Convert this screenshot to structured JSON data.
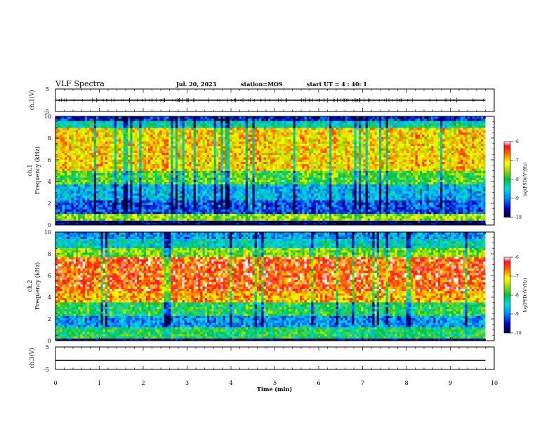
{
  "header": {
    "title": "VLF Spectra",
    "date": "Jul. 20, 2023",
    "station": "station=MOS",
    "start": "start UT = 4 : 40: 1"
  },
  "chart_data": [
    {
      "type": "line",
      "panel": "ch1-waveform",
      "ylabel": "ch.1(V)",
      "ylim": [
        -5,
        5
      ],
      "yticks": [
        "5",
        "-5"
      ],
      "xlim": [
        0,
        10
      ],
      "trace_level": 0
    },
    {
      "type": "heatmap",
      "panel": "ch1-spectrogram",
      "ylabel_top": "ch.1",
      "ylabel": "Frequency (kHz)",
      "ylim": [
        0,
        10
      ],
      "yticks": [
        "0",
        "2",
        "4",
        "6",
        "8",
        "10"
      ],
      "xlim": [
        0,
        10
      ],
      "data_end": 9.8,
      "colorbar": {
        "label": "log(PSD)(V²/Hz)",
        "range": [
          -10,
          -6
        ],
        "ticks": [
          "-6",
          "-7",
          "-8",
          "-9",
          "-10"
        ]
      }
    },
    {
      "type": "heatmap",
      "panel": "ch2-spectrogram",
      "ylabel_top": "ch.2",
      "ylabel": "Frequency (kHz)",
      "ylim": [
        0,
        10
      ],
      "yticks": [
        "0",
        "2",
        "4",
        "6",
        "8",
        "10"
      ],
      "xlim": [
        0,
        10
      ],
      "data_end": 9.8,
      "colorbar": {
        "label": "log(PSD)(V²/Hz)",
        "range": [
          -10,
          -6
        ],
        "ticks": [
          "-6",
          "-7",
          "-8",
          "-9",
          "-10"
        ]
      }
    },
    {
      "type": "line",
      "panel": "ch3-waveform",
      "ylabel": "ch.3(V)",
      "ylim": [
        -5,
        5
      ],
      "yticks": [
        "5",
        "-5"
      ],
      "xlim": [
        0,
        10
      ],
      "trace_level": -1,
      "xlabel": "Time (min)",
      "xticks": [
        "0",
        "1",
        "2",
        "3",
        "4",
        "5",
        "6",
        "7",
        "8",
        "9",
        "10"
      ]
    }
  ]
}
